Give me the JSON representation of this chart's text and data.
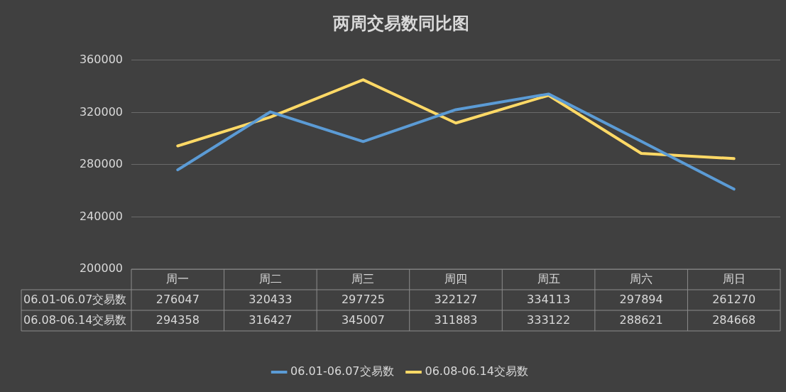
{
  "chart_data": {
    "type": "line",
    "title": "两周交易数同比图",
    "categories": [
      "周一",
      "周二",
      "周三",
      "周四",
      "周五",
      "周六",
      "周日"
    ],
    "series": [
      {
        "name": "06.01-06.07交易数",
        "color": "#5b9bd5",
        "values": [
          276047,
          320433,
          297725,
          322127,
          334113,
          297894,
          261270
        ]
      },
      {
        "name": "06.08-06.14交易数",
        "color": "#ffd966",
        "values": [
          294358,
          316427,
          345007,
          311883,
          333122,
          288621,
          284668
        ]
      }
    ],
    "ylim": [
      200000,
      360000
    ],
    "yticks": [
      200000,
      240000,
      280000,
      320000,
      360000
    ],
    "grid": "y",
    "legend": "bottom",
    "data_labels": true,
    "marker": "none",
    "line_style": "solid"
  }
}
